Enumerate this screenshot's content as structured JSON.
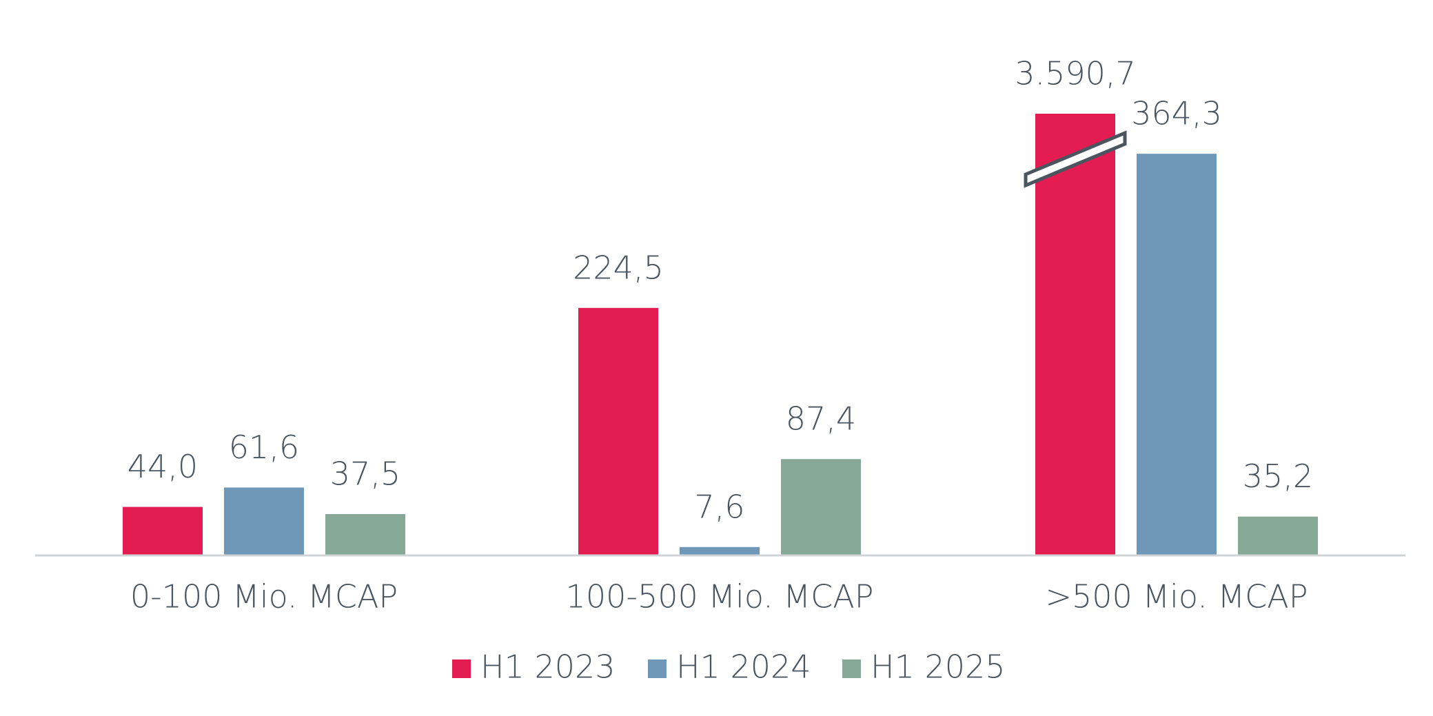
{
  "chart_data": {
    "type": "bar",
    "categories": [
      "0-100 Mio. MCAP",
      "100-500 Mio. MCAP",
      ">500 Mio. MCAP"
    ],
    "series": [
      {
        "name": "H1 2023",
        "color": "#e31c52",
        "values": [
          44.0,
          224.5,
          3590.7
        ],
        "value_labels": [
          "44,0",
          "224,5",
          "3.590,7"
        ]
      },
      {
        "name": "H1 2024",
        "color": "#6f97b8",
        "values": [
          61.6,
          7.6,
          364.3
        ],
        "value_labels": [
          "61,6",
          "7,6",
          "364,3"
        ]
      },
      {
        "name": "H1 2025",
        "color": "#86a897",
        "values": [
          37.5,
          87.4,
          35.2
        ],
        "value_labels": [
          "37,5",
          "87,4",
          "35,2"
        ]
      }
    ],
    "legend": "bottom"
  }
}
